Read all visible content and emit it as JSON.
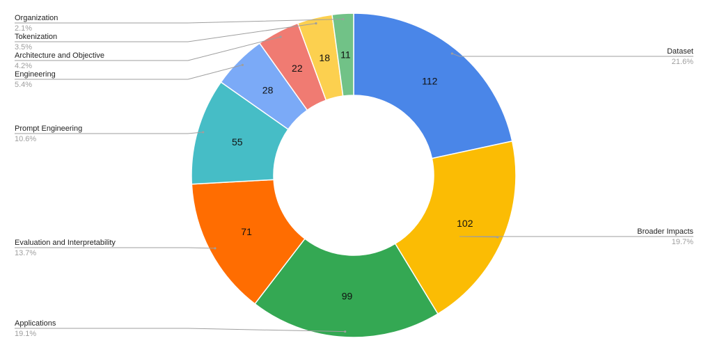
{
  "chart_data": {
    "type": "pie",
    "donut": true,
    "title": "",
    "total_label_style": "value-inside-percent-outside",
    "slices": [
      {
        "label": "Dataset",
        "value": 112,
        "percent": "21.6%",
        "color": "#4a86e8"
      },
      {
        "label": "Broader Impacts",
        "value": 102,
        "percent": "19.7%",
        "color": "#fbbc04"
      },
      {
        "label": "Applications",
        "value": 99,
        "percent": "19.1%",
        "color": "#34a853"
      },
      {
        "label": "Evaluation and Interpretability",
        "value": 71,
        "percent": "13.7%",
        "color": "#ff6d01"
      },
      {
        "label": "Prompt Engineering",
        "value": 55,
        "percent": "10.6%",
        "color": "#46bdc6"
      },
      {
        "label": "Engineering",
        "value": 28,
        "percent": "5.4%",
        "color": "#7baaf7"
      },
      {
        "label": "Architecture and Objective",
        "value": 22,
        "percent": "4.2%",
        "color": "#f07b72"
      },
      {
        "label": "Tokenization",
        "value": 18,
        "percent": "3.5%",
        "color": "#fcd04f"
      },
      {
        "label": "Organization",
        "value": 11,
        "percent": "2.1%",
        "color": "#71c287"
      }
    ]
  }
}
